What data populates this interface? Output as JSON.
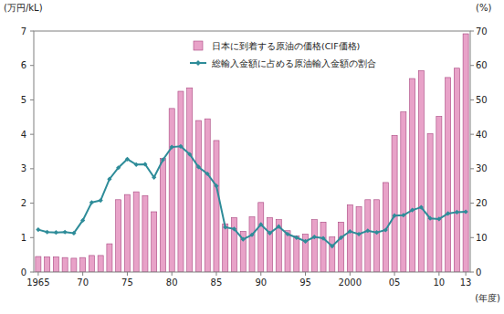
{
  "chart_data": {
    "type": "bar",
    "y_label": "(万円/kL)",
    "y2_label": "(%)",
    "x_label": "(年度)",
    "categories": [
      "1965",
      null,
      null,
      null,
      null,
      "70",
      null,
      null,
      null,
      null,
      "75",
      null,
      null,
      null,
      null,
      "80",
      null,
      null,
      null,
      null,
      "85",
      null,
      null,
      null,
      null,
      "90",
      null,
      null,
      null,
      null,
      "95",
      null,
      null,
      null,
      null,
      "2000",
      null,
      null,
      null,
      null,
      "05",
      null,
      null,
      null,
      null,
      "10",
      null,
      null,
      "13"
    ],
    "series": [
      {
        "name": "日本に到着する原油の価格(CIF価格)",
        "type": "bar",
        "color": "#e8a2c8",
        "values": [
          0.45,
          0.44,
          0.44,
          0.42,
          0.4,
          0.42,
          0.48,
          0.48,
          0.82,
          2.1,
          2.25,
          2.33,
          2.22,
          1.75,
          3.3,
          4.75,
          5.25,
          5.35,
          4.4,
          4.45,
          3.82,
          1.4,
          1.58,
          1.18,
          1.6,
          2.02,
          1.58,
          1.52,
          1.2,
          1.05,
          1.1,
          1.52,
          1.45,
          1.02,
          1.45,
          1.95,
          1.9,
          2.1,
          2.1,
          2.6,
          3.97,
          4.65,
          5.62,
          5.85,
          4.02,
          4.52,
          5.65,
          5.92,
          6.92
        ]
      },
      {
        "name": "総輸入金額に占める原油輸入金額の割合",
        "type": "line",
        "axis": "y2",
        "color": "#2e8c99",
        "marker": "diamond",
        "values": [
          12.3,
          11.6,
          11.5,
          11.6,
          11.3,
          15.0,
          20.2,
          20.8,
          27.0,
          30.3,
          32.8,
          31.2,
          31.3,
          27.5,
          32.6,
          36.3,
          36.5,
          34.2,
          30.5,
          28.5,
          25.0,
          13.0,
          12.5,
          9.5,
          10.8,
          13.8,
          11.3,
          13.2,
          11.0,
          10.0,
          8.9,
          10.2,
          9.8,
          7.5,
          10.0,
          11.8,
          11.0,
          12.0,
          11.5,
          12.2,
          16.4,
          16.5,
          18.0,
          18.8,
          15.6,
          15.4,
          17.0,
          17.4,
          17.5
        ]
      }
    ],
    "ylim": [
      0,
      7
    ],
    "yticks": [
      0,
      1,
      2,
      3,
      4,
      5,
      6,
      7
    ],
    "y2lim": [
      0,
      70
    ],
    "y2ticks": [
      0,
      10,
      20,
      30,
      40,
      50,
      60,
      70
    ],
    "grid": false,
    "legend": "top"
  }
}
